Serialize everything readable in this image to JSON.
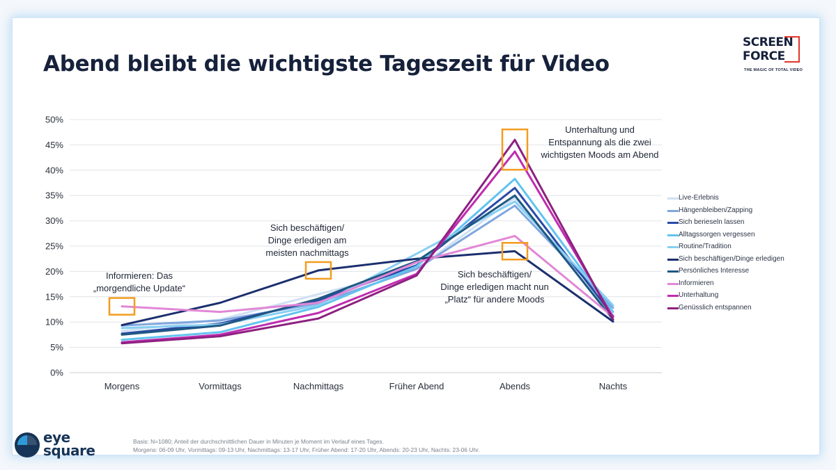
{
  "title": "Abend bleibt die wichtigste Tageszeit für Video",
  "screenforce_logo": {
    "line1": "SCREEN",
    "line2": "FORCE",
    "tagline": "THE MAGIC OF TOTAL VIDEO",
    "accent_color": "#e2332a"
  },
  "chart_data": {
    "type": "line",
    "categories": [
      "Morgens",
      "Vormittags",
      "Nachmittags",
      "Früher Abend",
      "Abends",
      "Nachts"
    ],
    "y_ticks": [
      "0%",
      "5%",
      "10%",
      "15%",
      "20%",
      "25%",
      "30%",
      "35%",
      "40%",
      "45%",
      "50%"
    ],
    "ylim": [
      0,
      50
    ],
    "grid": true,
    "legend_position": "right",
    "series": [
      {
        "name": "Live-Erlebnis",
        "color": "#cfe0f3",
        "values": [
          8.2,
          10.5,
          15.5,
          20.5,
          34.5,
          11.0
        ]
      },
      {
        "name": "Hängenbleiben/Zapping",
        "color": "#7fa7de",
        "values": [
          9.3,
          10.3,
          13.7,
          20.5,
          33.0,
          12.8
        ]
      },
      {
        "name": "Sich berieseln lassen",
        "color": "#2a4aa6",
        "values": [
          7.7,
          9.7,
          14.3,
          21.2,
          36.5,
          11.2
        ]
      },
      {
        "name": "Alltagssorgen vergessen",
        "color": "#62c3ef",
        "values": [
          6.5,
          8.0,
          13.0,
          21.0,
          38.3,
          12.0
        ]
      },
      {
        "name": "Routine/Tradition",
        "color": "#88cff2",
        "values": [
          8.8,
          9.5,
          13.3,
          23.5,
          33.8,
          13.3
        ]
      },
      {
        "name": "Sich beschäftigen/Dinge erledigen",
        "color": "#1b2f6e",
        "values": [
          9.4,
          13.8,
          20.2,
          22.5,
          24.0,
          10.1
        ]
      },
      {
        "name": "Persönliches Interesse",
        "color": "#1f5882",
        "values": [
          7.5,
          9.3,
          14.6,
          22.0,
          35.0,
          10.5
        ]
      },
      {
        "name": "Informieren",
        "color": "#e187d6",
        "values": [
          13.1,
          12.0,
          13.8,
          21.8,
          27.0,
          11.0
        ]
      },
      {
        "name": "Unterhaltung",
        "color": "#bf2cb0",
        "values": [
          6.0,
          7.5,
          11.8,
          19.5,
          43.7,
          11.0
        ]
      },
      {
        "name": "Genüsslich entspannen",
        "color": "#8d2180",
        "values": [
          5.8,
          7.2,
          10.7,
          19.2,
          46.0,
          10.5
        ]
      }
    ],
    "highlight_boxes_color": "#f39c1f"
  },
  "annotations": {
    "morning_line1": "Informieren: Das",
    "morning_line2": "„morgendliche Update“",
    "afternoon_line1": "Sich beschäftigen/",
    "afternoon_line2": "Dinge erledigen am",
    "afternoon_line3": "meisten nachmittags",
    "evening_top_line1": "Unterhaltung und",
    "evening_top_line2": "Entspannung als die zwei",
    "evening_top_line3": "wichtigsten Moods am Abend",
    "evening_low_line1": "Sich beschäftigen/",
    "evening_low_line2": "Dinge erledigen macht nun",
    "evening_low_line3": "„Platz“ für andere Moods"
  },
  "eye_square_logo": {
    "line1": "eye",
    "line2": "square",
    "color": "#163457"
  },
  "footnote": {
    "line1": "Basis: N=1080; Anteil der durchschnittlichen Dauer in Minuten je Moment im Verlauf eines Tages.",
    "line2": "Morgens: 06-09 Uhr, Vormittags: 09-13 Uhr, Nachmittags: 13-17 Uhr, Früher Abend: 17-20 Uhr, Abends: 20-23 Uhr, Nachts: 23-06 Uhr."
  }
}
